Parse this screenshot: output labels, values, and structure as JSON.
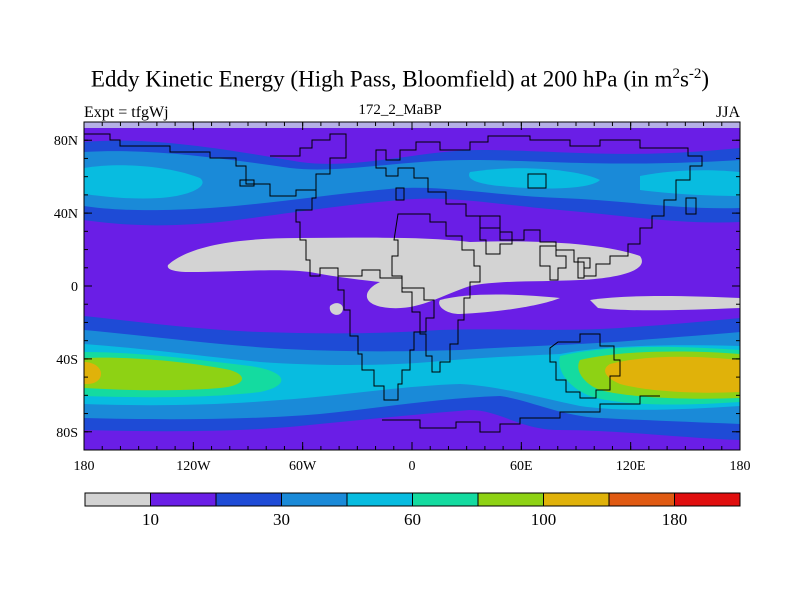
{
  "title": {
    "prefix": "Eddy Kinetic Energy (High Pass, Bloomfield) at 200 hPa (in m",
    "sup1": "2",
    "mid": "s",
    "sup2": "-2",
    "suffix": ")"
  },
  "subtitle": "172_2_MaBP",
  "left_label": "Expt = tfgWj",
  "right_label": "JJA",
  "chart_data": {
    "type": "heatmap",
    "x_ticks": [
      "180",
      "120W",
      "60W",
      "0",
      "60E",
      "120E",
      "180"
    ],
    "x_tick_values": [
      -180,
      -120,
      -60,
      0,
      60,
      120,
      180
    ],
    "y_ticks": [
      "80N",
      "40N",
      "0",
      "40S",
      "80S"
    ],
    "y_tick_values": [
      80,
      40,
      0,
      -40,
      -80
    ],
    "xlim": [
      -180,
      180
    ],
    "ylim": [
      -90,
      90
    ],
    "colorbar": {
      "colors": [
        "#d3d3d3",
        "#6a1ee6",
        "#1e4bd6",
        "#1a8ad8",
        "#08bce0",
        "#14dba0",
        "#8ed214",
        "#e0b20a",
        "#e05a12",
        "#e00e0e"
      ],
      "boundaries": [
        10,
        20,
        30,
        45,
        60,
        80,
        100,
        140,
        180
      ],
      "labels": [
        "10",
        "30",
        "60",
        "100",
        "180"
      ],
      "label_boundary_index": [
        0,
        2,
        4,
        6,
        8
      ]
    }
  },
  "colors": {
    "gray": "#d3d3d3",
    "purple": "#6a1ee6",
    "blue": "#1e4bd6",
    "mid_blue": "#1a8ad8",
    "light_blue": "#08bce0",
    "cyan_green": "#14dba0",
    "yellow_green": "#8ed214",
    "orange_yellow": "#e0b20a",
    "orange": "#e05a12",
    "red": "#e00e0e"
  }
}
